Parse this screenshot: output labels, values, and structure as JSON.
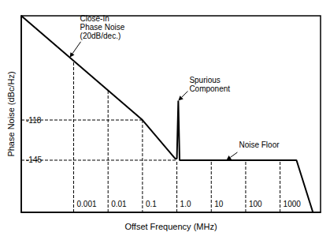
{
  "chart_data": {
    "type": "line",
    "x_label": "Offset Frequency (MHz)",
    "y_label": "Phase Noise (dBc/Hz)",
    "log": "x",
    "grid": false,
    "xlim": [
      3e-05,
      15000
    ],
    "xticks": [
      0.001,
      0.01,
      0.1,
      {
        "value": 1,
        "label": "1.0"
      },
      10,
      100,
      1000
    ],
    "ylim": [
      -180,
      -48
    ],
    "yticks": [
      -145,
      -118
    ],
    "series": [
      {
        "color": "#000000",
        "line_style": "solid",
        "x": [
          3e-05,
          0.1,
          0.9,
          1.0,
          1.1,
          1.2,
          3000,
          9000
        ],
        "values": [
          -48,
          -118,
          -144,
          -144,
          -105,
          -145,
          -145,
          -180
        ]
      },
      {
        "color": "#000000",
        "line_style": "dashed",
        "x": [
          3e-05,
          0.1
        ],
        "values": [
          -118,
          -118
        ]
      },
      {
        "color": "#000000",
        "line_style": "dashed",
        "x": [
          0.1,
          0.1
        ],
        "values": [
          -118,
          -180
        ]
      },
      {
        "color": "#000000",
        "line_style": "dashed",
        "x": [
          3e-05,
          1
        ],
        "values": [
          -145,
          -145
        ]
      },
      {
        "color": "#000000",
        "line_style": "dashed",
        "x": [
          0.001,
          0.001
        ],
        "values": [
          -180,
          -78
        ]
      },
      {
        "color": "#000000",
        "line_style": "dashed",
        "x": [
          0.01,
          0.01
        ],
        "values": [
          -180,
          -98
        ]
      },
      {
        "color": "#000000",
        "line_style": "dashed",
        "x": [
          1,
          1
        ],
        "values": [
          -180,
          -145
        ]
      },
      {
        "color": "#000000",
        "line_style": "dashed",
        "x": [
          10,
          10
        ],
        "values": [
          -180,
          -145
        ]
      },
      {
        "color": "#000000",
        "line_style": "dashed",
        "x": [
          100,
          100
        ],
        "values": [
          -180,
          -145
        ]
      },
      {
        "color": "#000000",
        "line_style": "dashed",
        "x": [
          1000,
          1000
        ],
        "values": [
          -180,
          -145
        ]
      }
    ],
    "annotations": [
      {
        "text": [
          "Close-In",
          "Phase Noise",
          "(20dB/dec.)"
        ]
      },
      {
        "text": [
          "Spurious",
          "Component"
        ]
      },
      {
        "text": [
          "Noise Floor"
        ]
      }
    ]
  }
}
